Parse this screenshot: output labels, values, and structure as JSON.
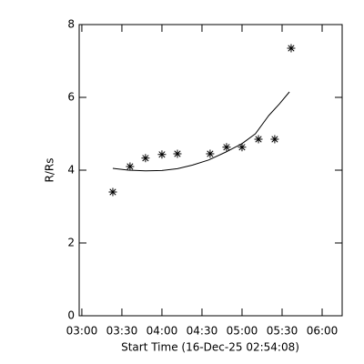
{
  "chart_data": {
    "type": "scatter",
    "xlabel": "Start Time (16-Dec-25 02:54:08)",
    "ylabel": "R/Rs",
    "points": {
      "color": "#000000",
      "x": [
        203.2,
        216.1,
        227.7,
        240,
        251.6,
        276.1,
        288.4,
        300,
        312.3,
        324.5,
        336.8
      ],
      "values": [
        3.4,
        4.1,
        4.33,
        4.43,
        4.45,
        4.45,
        4.63,
        4.63,
        4.85,
        4.85,
        7.35
      ]
    },
    "fit": {
      "color": "#000000",
      "x": [
        203.2,
        215,
        227.7,
        240,
        251.6,
        263,
        275,
        288,
        300,
        310,
        320,
        328,
        335.5
      ],
      "values": [
        4.05,
        4.0,
        3.98,
        3.99,
        4.04,
        4.14,
        4.28,
        4.5,
        4.73,
        5.0,
        5.5,
        5.82,
        6.15
      ]
    },
    "xlim": [
      178,
      375
    ],
    "ylim": [
      0,
      8
    ],
    "xticks": [
      {
        "value": 180,
        "label": "03:00"
      },
      {
        "value": 210,
        "label": "03:30"
      },
      {
        "value": 240,
        "label": "04:00"
      },
      {
        "value": 270,
        "label": "04:30"
      },
      {
        "value": 300,
        "label": "05:00"
      },
      {
        "value": 330,
        "label": "05:30"
      },
      {
        "value": 360,
        "label": "06:00"
      }
    ],
    "yticks": [
      0,
      2,
      4,
      6,
      8
    ]
  }
}
